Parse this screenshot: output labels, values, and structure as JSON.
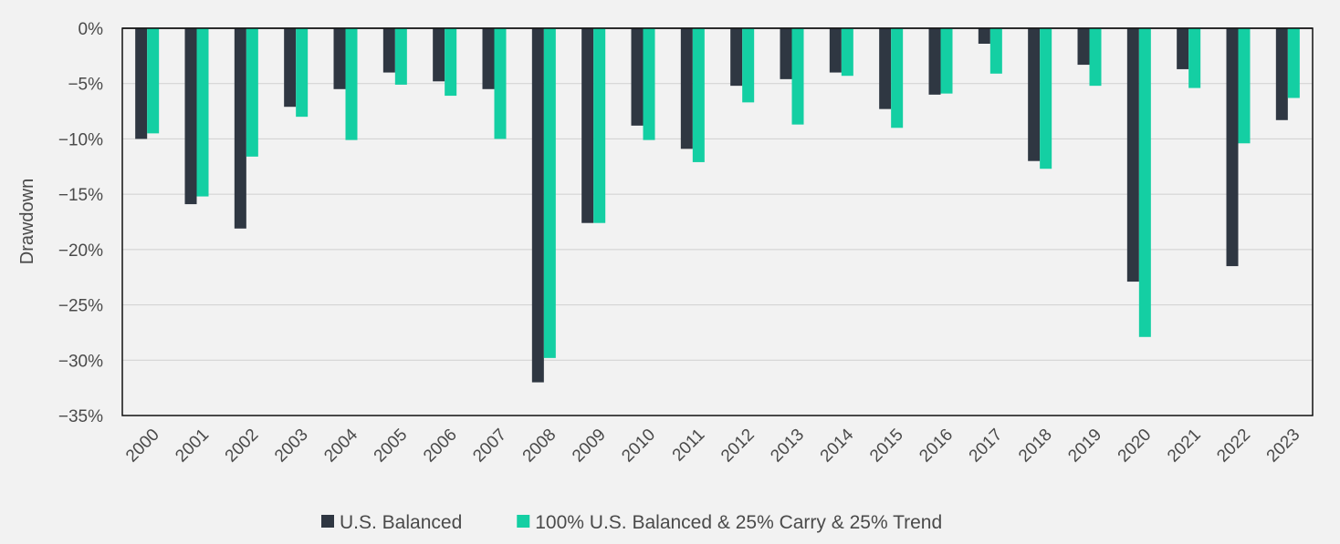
{
  "chart_data": {
    "type": "bar",
    "ylabel": "Drawdown",
    "ylim": [
      -35,
      0
    ],
    "yticks": [
      0,
      -5,
      -10,
      -15,
      -20,
      -25,
      -30,
      -35
    ],
    "ytick_labels": [
      "0%",
      "−5%",
      "−10%",
      "−15%",
      "−20%",
      "−25%",
      "−30%",
      "−35%"
    ],
    "grid": true,
    "legend_position": "bottom",
    "categories": [
      "2000",
      "2001",
      "2002",
      "2003",
      "2004",
      "2005",
      "2006",
      "2007",
      "2008",
      "2009",
      "2010",
      "2011",
      "2012",
      "2013",
      "2014",
      "2015",
      "2016",
      "2017",
      "2018",
      "2019",
      "2020",
      "2021",
      "2022",
      "2023"
    ],
    "series": [
      {
        "name": "U.S. Balanced",
        "color": "#2f3742",
        "values": [
          -10.0,
          -15.9,
          -18.1,
          -7.1,
          -5.5,
          -4.0,
          -4.8,
          -5.5,
          -32.0,
          -17.6,
          -8.8,
          -10.9,
          -5.2,
          -4.6,
          -4.0,
          -7.3,
          -6.0,
          -1.4,
          -12.0,
          -3.3,
          -22.9,
          -3.7,
          -21.5,
          -8.3
        ]
      },
      {
        "name": "100% U.S. Balanced & 25% Carry & 25% Trend",
        "color": "#14cfa3",
        "values": [
          -9.5,
          -15.2,
          -11.6,
          -8.0,
          -10.1,
          -5.1,
          -6.1,
          -10.0,
          -29.8,
          -17.6,
          -10.1,
          -12.1,
          -6.7,
          -8.7,
          -4.3,
          -9.0,
          -5.9,
          -4.1,
          -12.7,
          -5.2,
          -27.9,
          -5.4,
          -10.4,
          -6.3
        ]
      }
    ]
  }
}
